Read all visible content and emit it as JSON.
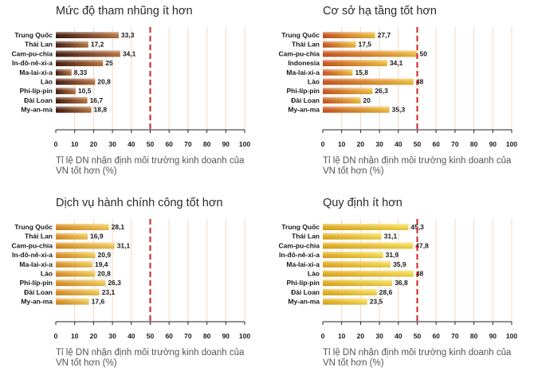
{
  "chart_data": [
    {
      "type": "bar",
      "orientation": "horizontal",
      "title": "Mức độ tham nhũng ít hơn",
      "caption": "Tỉ lệ DN nhận định môi trường kinh doanh của VN tốt hơn (%)",
      "categories": [
        "Trung Quốc",
        "Thái Lan",
        "Cam-pu-chia",
        "In-đô-nê-xi-a",
        "Ma-lai-xi-a",
        "Lào",
        "Phi-líp-pin",
        "Đài Loan",
        "My-an-ma"
      ],
      "values": [
        33.3,
        17.2,
        34.1,
        25,
        8.33,
        20.8,
        10.5,
        16.7,
        18.8
      ],
      "labels": [
        "33,3",
        "17,2",
        "34,1",
        "25",
        "8,33",
        "20,8",
        "10,5",
        "16,7",
        "18,8"
      ],
      "xlim": [
        0,
        100
      ],
      "ticks": [
        "0",
        "10",
        "20",
        "30",
        "40",
        "50",
        "60",
        "70",
        "80",
        "90",
        "100"
      ],
      "reference_line": 50,
      "colors": {
        "start": "#3d1508",
        "end": "#b8703a",
        "highlight": "#d8b089"
      }
    },
    {
      "type": "bar",
      "orientation": "horizontal",
      "title": "Cơ sở hạ tầng tốt hơn",
      "caption": "Tỉ lệ DN nhận định môi trường kinh doanh của VN tốt hơn (%)",
      "categories": [
        "Trung Quốc",
        "Thái Lan",
        "Cam-pu-chia",
        "Indonesia",
        "Ma-lai-xi-a",
        "Lào",
        "Phi-líp-pin",
        "Đài Loan",
        "My-an-ma"
      ],
      "values": [
        27.7,
        17.5,
        50,
        34.1,
        15.8,
        48,
        26.3,
        20,
        35.3
      ],
      "labels": [
        "27,7",
        "17,5",
        "50",
        "34,1",
        "15,8",
        "48",
        "26,3",
        "20",
        "35,3"
      ],
      "xlim": [
        0,
        100
      ],
      "ticks": [
        "0",
        "10",
        "20",
        "30",
        "40",
        "50",
        "60",
        "70",
        "80",
        "90",
        "100"
      ],
      "reference_line": 50,
      "colors": {
        "start": "#c8501a",
        "end": "#eebc3a",
        "highlight": "#f6dc8c"
      }
    },
    {
      "type": "bar",
      "orientation": "horizontal",
      "title": "Dịch vụ hành chính công tốt hơn",
      "caption": "Tỉ lệ DN nhận định môi trường kinh doanh của VN tốt hơn (%)",
      "categories": [
        "Trung Quốc",
        "Thái Lan",
        "Cam-pu-chia",
        "In-đô-nê-xi-a",
        "Ma-lai-xi-a",
        "Lào",
        "Phi-líp-pin",
        "Đài Loan",
        "My-an-ma"
      ],
      "values": [
        28.1,
        16.9,
        31.1,
        20.9,
        19.4,
        20.8,
        26.3,
        23.1,
        17.6
      ],
      "labels": [
        "28,1",
        "16,9",
        "31,1",
        "20,9",
        "19,4",
        "20,8",
        "26,3",
        "23,1",
        "17,6"
      ],
      "xlim": [
        0,
        100
      ],
      "ticks": [
        "0",
        "10",
        "20",
        "30",
        "40",
        "50",
        "60",
        "70",
        "80",
        "90",
        "100"
      ],
      "reference_line": 50,
      "colors": {
        "start": "#d8891e",
        "end": "#f0c850",
        "highlight": "#fae6a0"
      }
    },
    {
      "type": "bar",
      "orientation": "horizontal",
      "title": "Quy định ít hơn",
      "caption": "Tỉ lệ DN nhận định môi trường kinh doanh của VN tốt hơn (%)",
      "categories": [
        "Trung Quốc",
        "Thái Lan",
        "Cam-pu-chia",
        "In-đô-nê-xi-a",
        "Ma-lai-xi-a",
        "Lào",
        "Phi-líp-pin",
        "Đài Loan",
        "My-an-ma"
      ],
      "values": [
        45.3,
        31.1,
        47.8,
        31.9,
        35.9,
        48,
        36.8,
        28.6,
        23.5
      ],
      "labels": [
        "45,3",
        "31,1",
        "47,8",
        "31,9",
        "35,9",
        "48",
        "36,8",
        "28,6",
        "23,5"
      ],
      "xlim": [
        0,
        100
      ],
      "ticks": [
        "0",
        "10",
        "20",
        "30",
        "40",
        "50",
        "60",
        "70",
        "80",
        "90",
        "100"
      ],
      "reference_line": 50,
      "colors": {
        "start": "#e0a818",
        "end": "#f5d84a",
        "highlight": "#fbeea8"
      }
    }
  ]
}
